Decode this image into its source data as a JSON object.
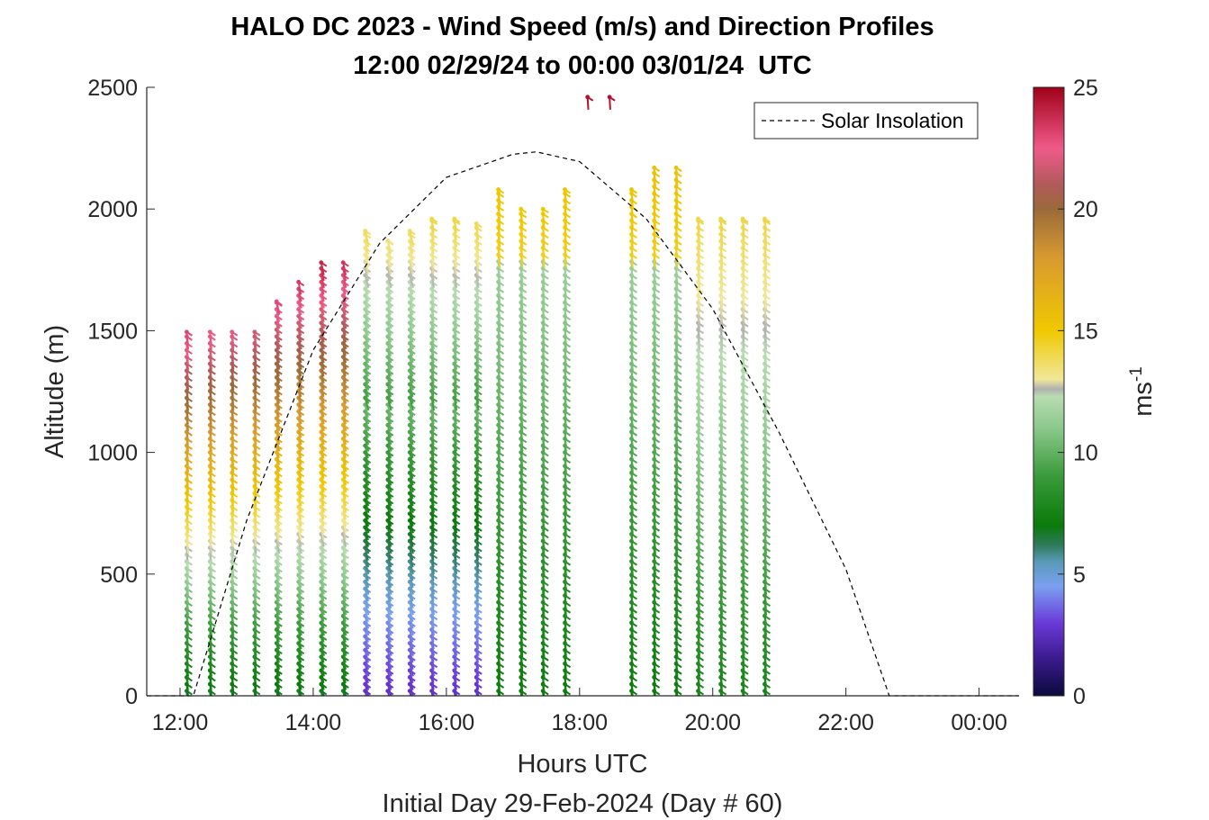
{
  "chart_data": {
    "type": "scatter",
    "title": "HALO DC 2023 - Wind Speed (m/s) and Direction Profiles",
    "subtitle": "12:00 02/29/24 to 00:00 03/01/24  UTC",
    "xlabel": "Hours UTC",
    "ylabel": "Altitude (m)",
    "footer": "Initial Day 29-Feb-2024 (Day # 60)",
    "xlim": [
      11.5,
      24.6
    ],
    "ylim": [
      0,
      2500
    ],
    "x_ticks": [
      12,
      14,
      16,
      18,
      20,
      22,
      24
    ],
    "x_tick_labels": [
      "12:00",
      "14:00",
      "16:00",
      "18:00",
      "20:00",
      "22:00",
      "00:00"
    ],
    "y_ticks": [
      0,
      500,
      1000,
      1500,
      2000,
      2500
    ],
    "y_tick_labels": [
      "0",
      "500",
      "1000",
      "1500",
      "2000",
      "2500"
    ],
    "grid": false,
    "legend": {
      "position": "top-right",
      "entries": [
        "Solar Insolation"
      ]
    },
    "colorbar": {
      "label": "ms",
      "label_superscript": "-1",
      "range": [
        0,
        25
      ],
      "ticks": [
        0,
        5,
        10,
        15,
        20,
        25
      ],
      "tick_labels": [
        "0",
        "5",
        "10",
        "15",
        "20",
        "25"
      ],
      "colormap": [
        {
          "v": 0,
          "c": "#0a0a3c"
        },
        {
          "v": 1.5,
          "c": "#3a1a8c"
        },
        {
          "v": 3,
          "c": "#6a3ad8"
        },
        {
          "v": 4.5,
          "c": "#7aa0f0"
        },
        {
          "v": 5.5,
          "c": "#5a9ab8"
        },
        {
          "v": 6.2,
          "c": "#2e7a5a"
        },
        {
          "v": 7,
          "c": "#0a7a0a"
        },
        {
          "v": 9,
          "c": "#3a9a3a"
        },
        {
          "v": 11,
          "c": "#8cc88c"
        },
        {
          "v": 12.3,
          "c": "#b8dcb0"
        },
        {
          "v": 12.6,
          "c": "#b0b0b0"
        },
        {
          "v": 13,
          "c": "#f0e89a"
        },
        {
          "v": 15,
          "c": "#f0c800"
        },
        {
          "v": 18,
          "c": "#d89a30"
        },
        {
          "v": 20,
          "c": "#9a6a3a"
        },
        {
          "v": 21,
          "c": "#b05a5a"
        },
        {
          "v": 22.5,
          "c": "#f05a8a"
        },
        {
          "v": 25,
          "c": "#a00018"
        }
      ]
    },
    "solar_insolation": {
      "name": "Solar Insolation",
      "style": "dashed",
      "x": [
        11.5,
        12.2,
        13.0,
        14.0,
        15.0,
        16.0,
        17.0,
        17.35,
        18.0,
        19.0,
        20.0,
        21.0,
        22.0,
        22.65,
        24.6
      ],
      "y": [
        0,
        0,
        720,
        1420,
        1860,
        2130,
        2225,
        2235,
        2195,
        1960,
        1590,
        1080,
        520,
        0,
        0
      ]
    },
    "wind_profiles": [
      {
        "time": 12.1,
        "max_alt": 1495,
        "direction": 340
      },
      {
        "time": 12.45,
        "max_alt": 1495,
        "direction": 340
      },
      {
        "time": 12.78,
        "max_alt": 1495,
        "direction": 340
      },
      {
        "time": 13.12,
        "max_alt": 1495,
        "direction": 340
      },
      {
        "time": 13.45,
        "max_alt": 1620,
        "direction": 320
      },
      {
        "time": 13.78,
        "max_alt": 1700,
        "direction": 320
      },
      {
        "time": 14.12,
        "max_alt": 1780,
        "direction": 320
      },
      {
        "time": 14.45,
        "max_alt": 1780,
        "direction": 320
      },
      {
        "time": 14.78,
        "max_alt": 1910,
        "direction": 310
      },
      {
        "time": 15.12,
        "max_alt": 1870,
        "direction": 310
      },
      {
        "time": 15.45,
        "max_alt": 1910,
        "direction": 310
      },
      {
        "time": 15.78,
        "max_alt": 1960,
        "direction": 330
      },
      {
        "time": 16.12,
        "max_alt": 1960,
        "direction": 330
      },
      {
        "time": 16.45,
        "max_alt": 1940,
        "direction": 330
      },
      {
        "time": 16.78,
        "max_alt": 2080,
        "direction": 340
      },
      {
        "time": 17.12,
        "max_alt": 2000,
        "direction": 340
      },
      {
        "time": 17.45,
        "max_alt": 2000,
        "direction": 345
      },
      {
        "time": 17.78,
        "max_alt": 2080,
        "direction": 345
      },
      {
        "time": 18.12,
        "max_alt": 2460,
        "direction": 350
      },
      {
        "time": 18.45,
        "max_alt": 2460,
        "direction": 350
      },
      {
        "time": 18.78,
        "max_alt": 2080,
        "direction": 345
      },
      {
        "time": 19.12,
        "max_alt": 2170,
        "direction": 345
      },
      {
        "time": 19.45,
        "max_alt": 2170,
        "direction": 345
      },
      {
        "time": 19.78,
        "max_alt": 1960,
        "direction": 340
      },
      {
        "time": 20.12,
        "max_alt": 1960,
        "direction": 340
      },
      {
        "time": 20.45,
        "max_alt": 1960,
        "direction": 340
      },
      {
        "time": 20.78,
        "max_alt": 1960,
        "direction": 340
      }
    ]
  }
}
